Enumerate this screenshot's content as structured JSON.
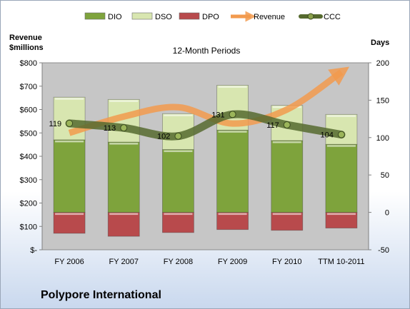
{
  "company": "Polypore International",
  "chart_data": {
    "type": "bar",
    "title": "12-Month Periods",
    "left_axis_label": [
      "Revenue",
      "$millions"
    ],
    "right_axis_label": "Days",
    "categories": [
      "FY 2006",
      "FY 2007",
      "FY 2008",
      "FY 2009",
      "FY 2010",
      "TTM 10-2011"
    ],
    "left_ticks": [
      "$-",
      "$100",
      "$200",
      "$300",
      "$400",
      "$500",
      "$600",
      "$700",
      "$800"
    ],
    "right_ticks": [
      "-50",
      "0",
      "50",
      "100",
      "150",
      "200"
    ],
    "right_range": [
      -50,
      200
    ],
    "left_range": [
      0,
      800
    ],
    "legend": [
      "DIO",
      "DSO",
      "DPO",
      "Revenue",
      "CCC"
    ],
    "legend_position": "top",
    "gridlines": false,
    "colors": {
      "DIO": "#7ea33c",
      "DSO": "#d8e6b0",
      "DPO": "#b84a4c",
      "Revenue": "#f29a4e",
      "CCC": "#566a2f",
      "plot_bg": "#c6c6c6"
    },
    "series_days": [
      {
        "name": "DIO",
        "values": [
          97,
          94,
          84,
          110,
          96,
          91
        ]
      },
      {
        "name": "DSO",
        "values": [
          57,
          57,
          48,
          60,
          47,
          40
        ]
      },
      {
        "name": "DPO",
        "values": [
          -28,
          -32,
          -27,
          -23,
          -24,
          -21
        ]
      },
      {
        "name": "CCC",
        "values": [
          119,
          113,
          102,
          131,
          117,
          104
        ]
      }
    ],
    "revenue_millions": [
      500,
      570,
      610,
      540,
      600,
      760
    ],
    "ccc_labels": [
      "119",
      "113",
      "102",
      "131",
      "117",
      "104"
    ]
  }
}
